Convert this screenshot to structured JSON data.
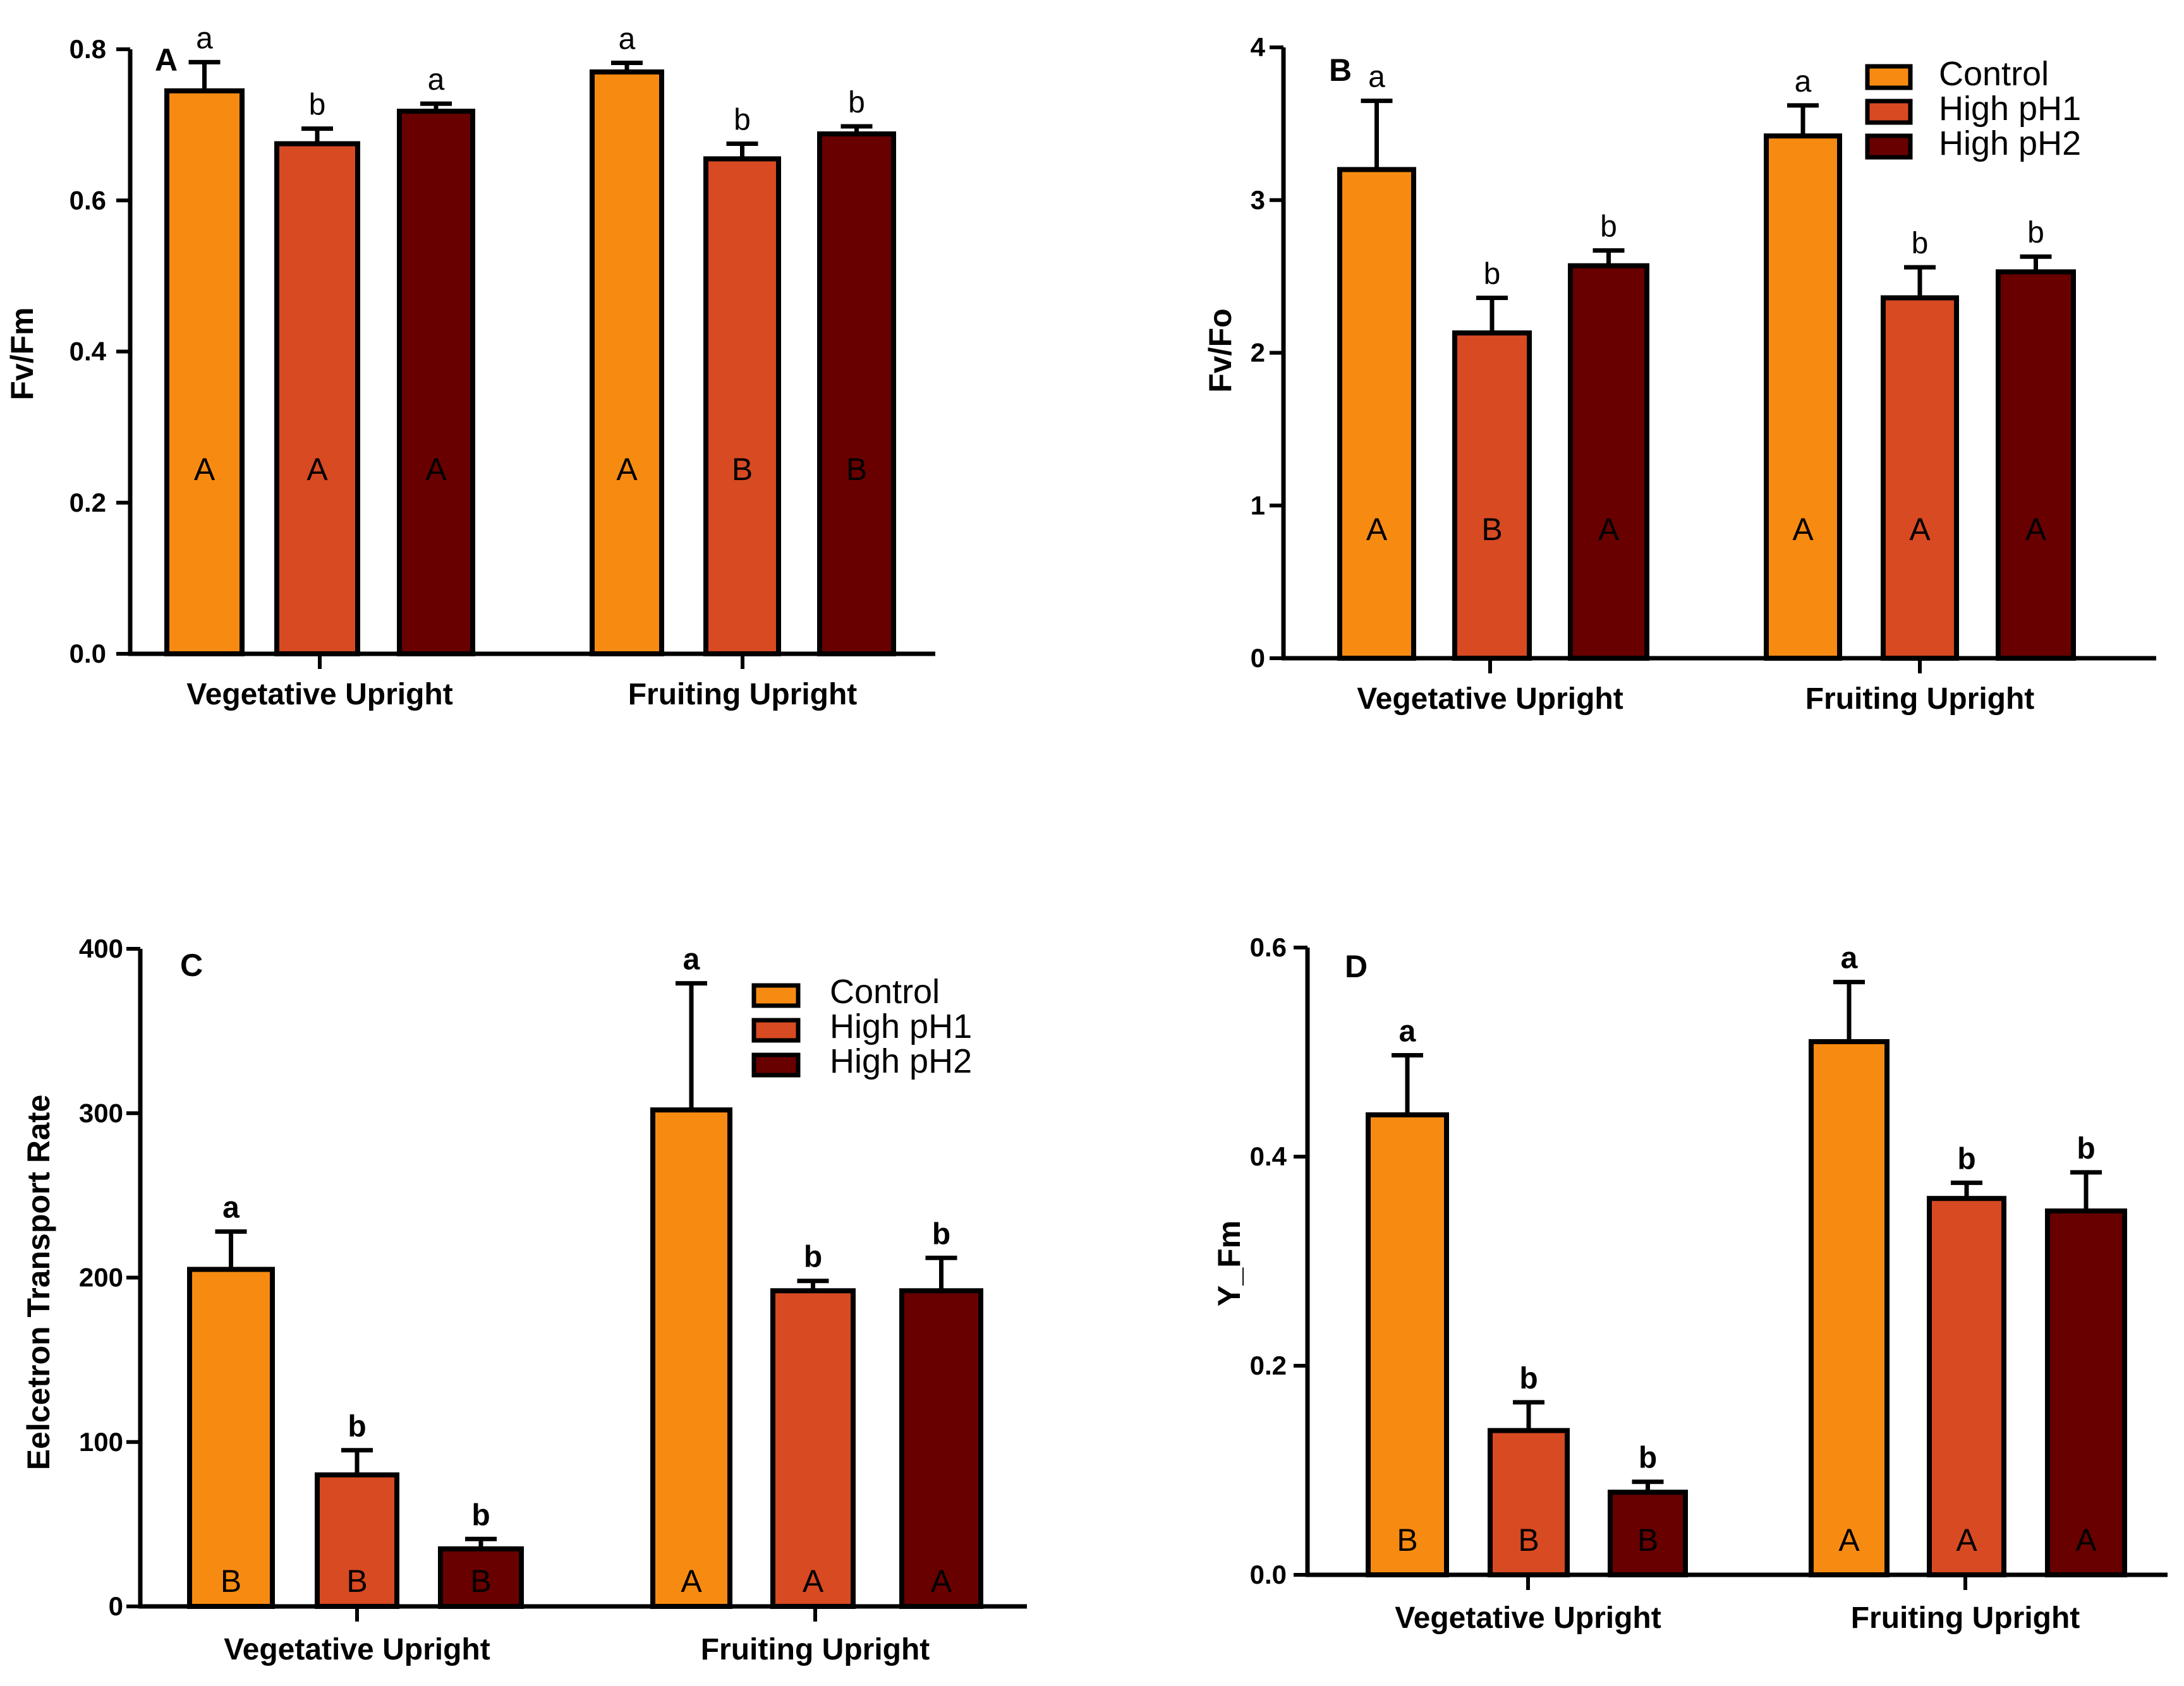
{
  "chart_data": [
    {
      "type": "bar",
      "panel": "A",
      "ylabel": "Fv/Fm",
      "xlabel": "",
      "ylim": [
        0,
        0.8
      ],
      "yticks": [
        "0.0",
        "0.2",
        "0.4",
        "0.6",
        "0.8"
      ],
      "ytick_values": [
        0,
        0.2,
        0.4,
        0.6,
        0.8
      ],
      "categories": [
        "Vegetative Upright",
        "Fruiting Upright"
      ],
      "series": [
        {
          "name": "Control",
          "color": "#F78B12",
          "values": [
            0.745,
            0.77
          ],
          "errors": [
            0.038,
            0.012
          ],
          "letters": [
            "a",
            "a"
          ],
          "groups": [
            "A",
            "A"
          ]
        },
        {
          "name": "High pH1",
          "color": "#D84A22",
          "values": [
            0.675,
            0.655
          ],
          "errors": [
            0.02,
            0.02
          ],
          "letters": [
            "b",
            "b"
          ],
          "groups": [
            "A",
            "B"
          ]
        },
        {
          "name": "High pH2",
          "color": "#690000",
          "values": [
            0.718,
            0.688
          ],
          "errors": [
            0.01,
            0.01
          ],
          "letters": [
            "a",
            "b"
          ],
          "groups": [
            "A",
            "B"
          ]
        }
      ],
      "show_legend": false,
      "grid": false
    },
    {
      "type": "bar",
      "panel": "B",
      "ylabel": "Fv/Fo",
      "xlabel": "",
      "ylim": [
        0,
        4
      ],
      "yticks": [
        "0",
        "1",
        "2",
        "3",
        "4"
      ],
      "ytick_values": [
        0,
        1,
        2,
        3,
        4
      ],
      "categories": [
        "Vegetative Upright",
        "Fruiting Upright"
      ],
      "series": [
        {
          "name": "Control",
          "color": "#F78B12",
          "values": [
            3.2,
            3.42
          ],
          "errors": [
            0.45,
            0.2
          ],
          "letters": [
            "a",
            "a"
          ],
          "groups": [
            "A",
            "A"
          ]
        },
        {
          "name": "High pH1",
          "color": "#D84A22",
          "values": [
            2.13,
            2.36
          ],
          "errors": [
            0.23,
            0.2
          ],
          "letters": [
            "b",
            "b"
          ],
          "groups": [
            "B",
            "A"
          ]
        },
        {
          "name": "High pH2",
          "color": "#690000",
          "values": [
            2.57,
            2.53
          ],
          "errors": [
            0.1,
            0.1
          ],
          "letters": [
            "b",
            "b"
          ],
          "groups": [
            "A",
            "A"
          ]
        }
      ],
      "show_legend": true,
      "legend": [
        "Control",
        "High pH1",
        "High pH2"
      ],
      "legend_position": "top-right",
      "grid": false
    },
    {
      "type": "bar",
      "panel": "C",
      "ylabel": "Eelcetron Transport  Rate",
      "xlabel": "",
      "ylim": [
        0,
        400
      ],
      "yticks": [
        "0",
        "100",
        "200",
        "300",
        "400"
      ],
      "ytick_values": [
        0,
        100,
        200,
        300,
        400
      ],
      "categories": [
        "Vegetative Upright",
        "Fruiting Upright"
      ],
      "series": [
        {
          "name": "Control",
          "color": "#F78B12",
          "values": [
            205,
            302
          ],
          "errors": [
            23,
            77
          ],
          "letters": [
            "a",
            "a"
          ],
          "groups": [
            "B",
            "A"
          ]
        },
        {
          "name": "High pH1",
          "color": "#D84A22",
          "values": [
            80,
            192
          ],
          "errors": [
            15,
            6
          ],
          "letters": [
            "b",
            "b"
          ],
          "groups": [
            "B",
            "A"
          ]
        },
        {
          "name": "High pH2",
          "color": "#690000",
          "values": [
            35,
            192
          ],
          "errors": [
            6,
            20
          ],
          "letters": [
            "b",
            "b"
          ],
          "groups": [
            "B",
            "A"
          ]
        }
      ],
      "show_legend": true,
      "legend": [
        "Control",
        "High pH1",
        "High pH2"
      ],
      "legend_position": "top-right",
      "grid": false
    },
    {
      "type": "bar",
      "panel": "D",
      "ylabel": "Y_Fm",
      "xlabel": "",
      "ylim": [
        0,
        0.6
      ],
      "yticks": [
        "0.0",
        "0.2",
        "0.4",
        "0.6"
      ],
      "ytick_values": [
        0,
        0.2,
        0.4,
        0.6
      ],
      "categories": [
        "Vegetative Upright",
        "Fruiting Upright"
      ],
      "series": [
        {
          "name": "Control",
          "color": "#F78B12",
          "values": [
            0.44,
            0.51
          ],
          "errors": [
            0.057,
            0.057
          ],
          "letters": [
            "a",
            "a"
          ],
          "groups": [
            "B",
            "A"
          ]
        },
        {
          "name": "High pH1",
          "color": "#D84A22",
          "values": [
            0.138,
            0.36
          ],
          "errors": [
            0.027,
            0.015
          ],
          "letters": [
            "b",
            "b"
          ],
          "groups": [
            "B",
            "A"
          ]
        },
        {
          "name": "High pH2",
          "color": "#690000",
          "values": [
            0.079,
            0.348
          ],
          "errors": [
            0.01,
            0.037
          ],
          "letters": [
            "b",
            "b"
          ],
          "groups": [
            "B",
            "A"
          ]
        }
      ],
      "show_legend": false,
      "grid": false
    }
  ]
}
